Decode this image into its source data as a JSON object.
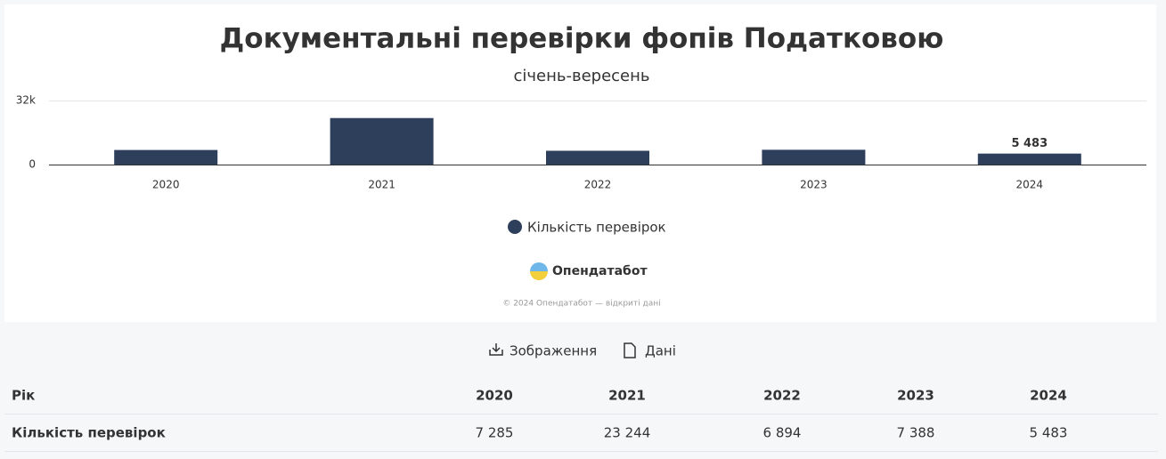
{
  "chart_data": {
    "type": "bar",
    "title": "Документальні перевірки фопів Податковою",
    "subtitle": "січень-вересень",
    "categories": [
      "2020",
      "2021",
      "2022",
      "2023",
      "2024"
    ],
    "series": [
      {
        "name": "Кількість перевірок",
        "color": "#2e3f5c",
        "values": [
          7285,
          23244,
          6894,
          7388,
          5483
        ],
        "value_labels": [
          null,
          null,
          null,
          null,
          "5 483"
        ]
      }
    ],
    "ylim": [
      0,
      32000
    ],
    "yticks": [
      0,
      {
        "value": 32000,
        "label": "32k"
      }
    ],
    "grid": true
  },
  "logo": "Опендатабот",
  "copyright": "© 2024 Опендатабот — відкриті дані",
  "buttons": [
    "Зображення",
    "Дані"
  ],
  "table": {
    "rows": [
      [
        "Рік",
        "2020",
        "2021",
        "2022",
        "2023",
        "2024"
      ],
      [
        "Кількість перевірок",
        "7 285",
        "23 244",
        "6 894",
        "7 388",
        "5 483"
      ]
    ]
  }
}
